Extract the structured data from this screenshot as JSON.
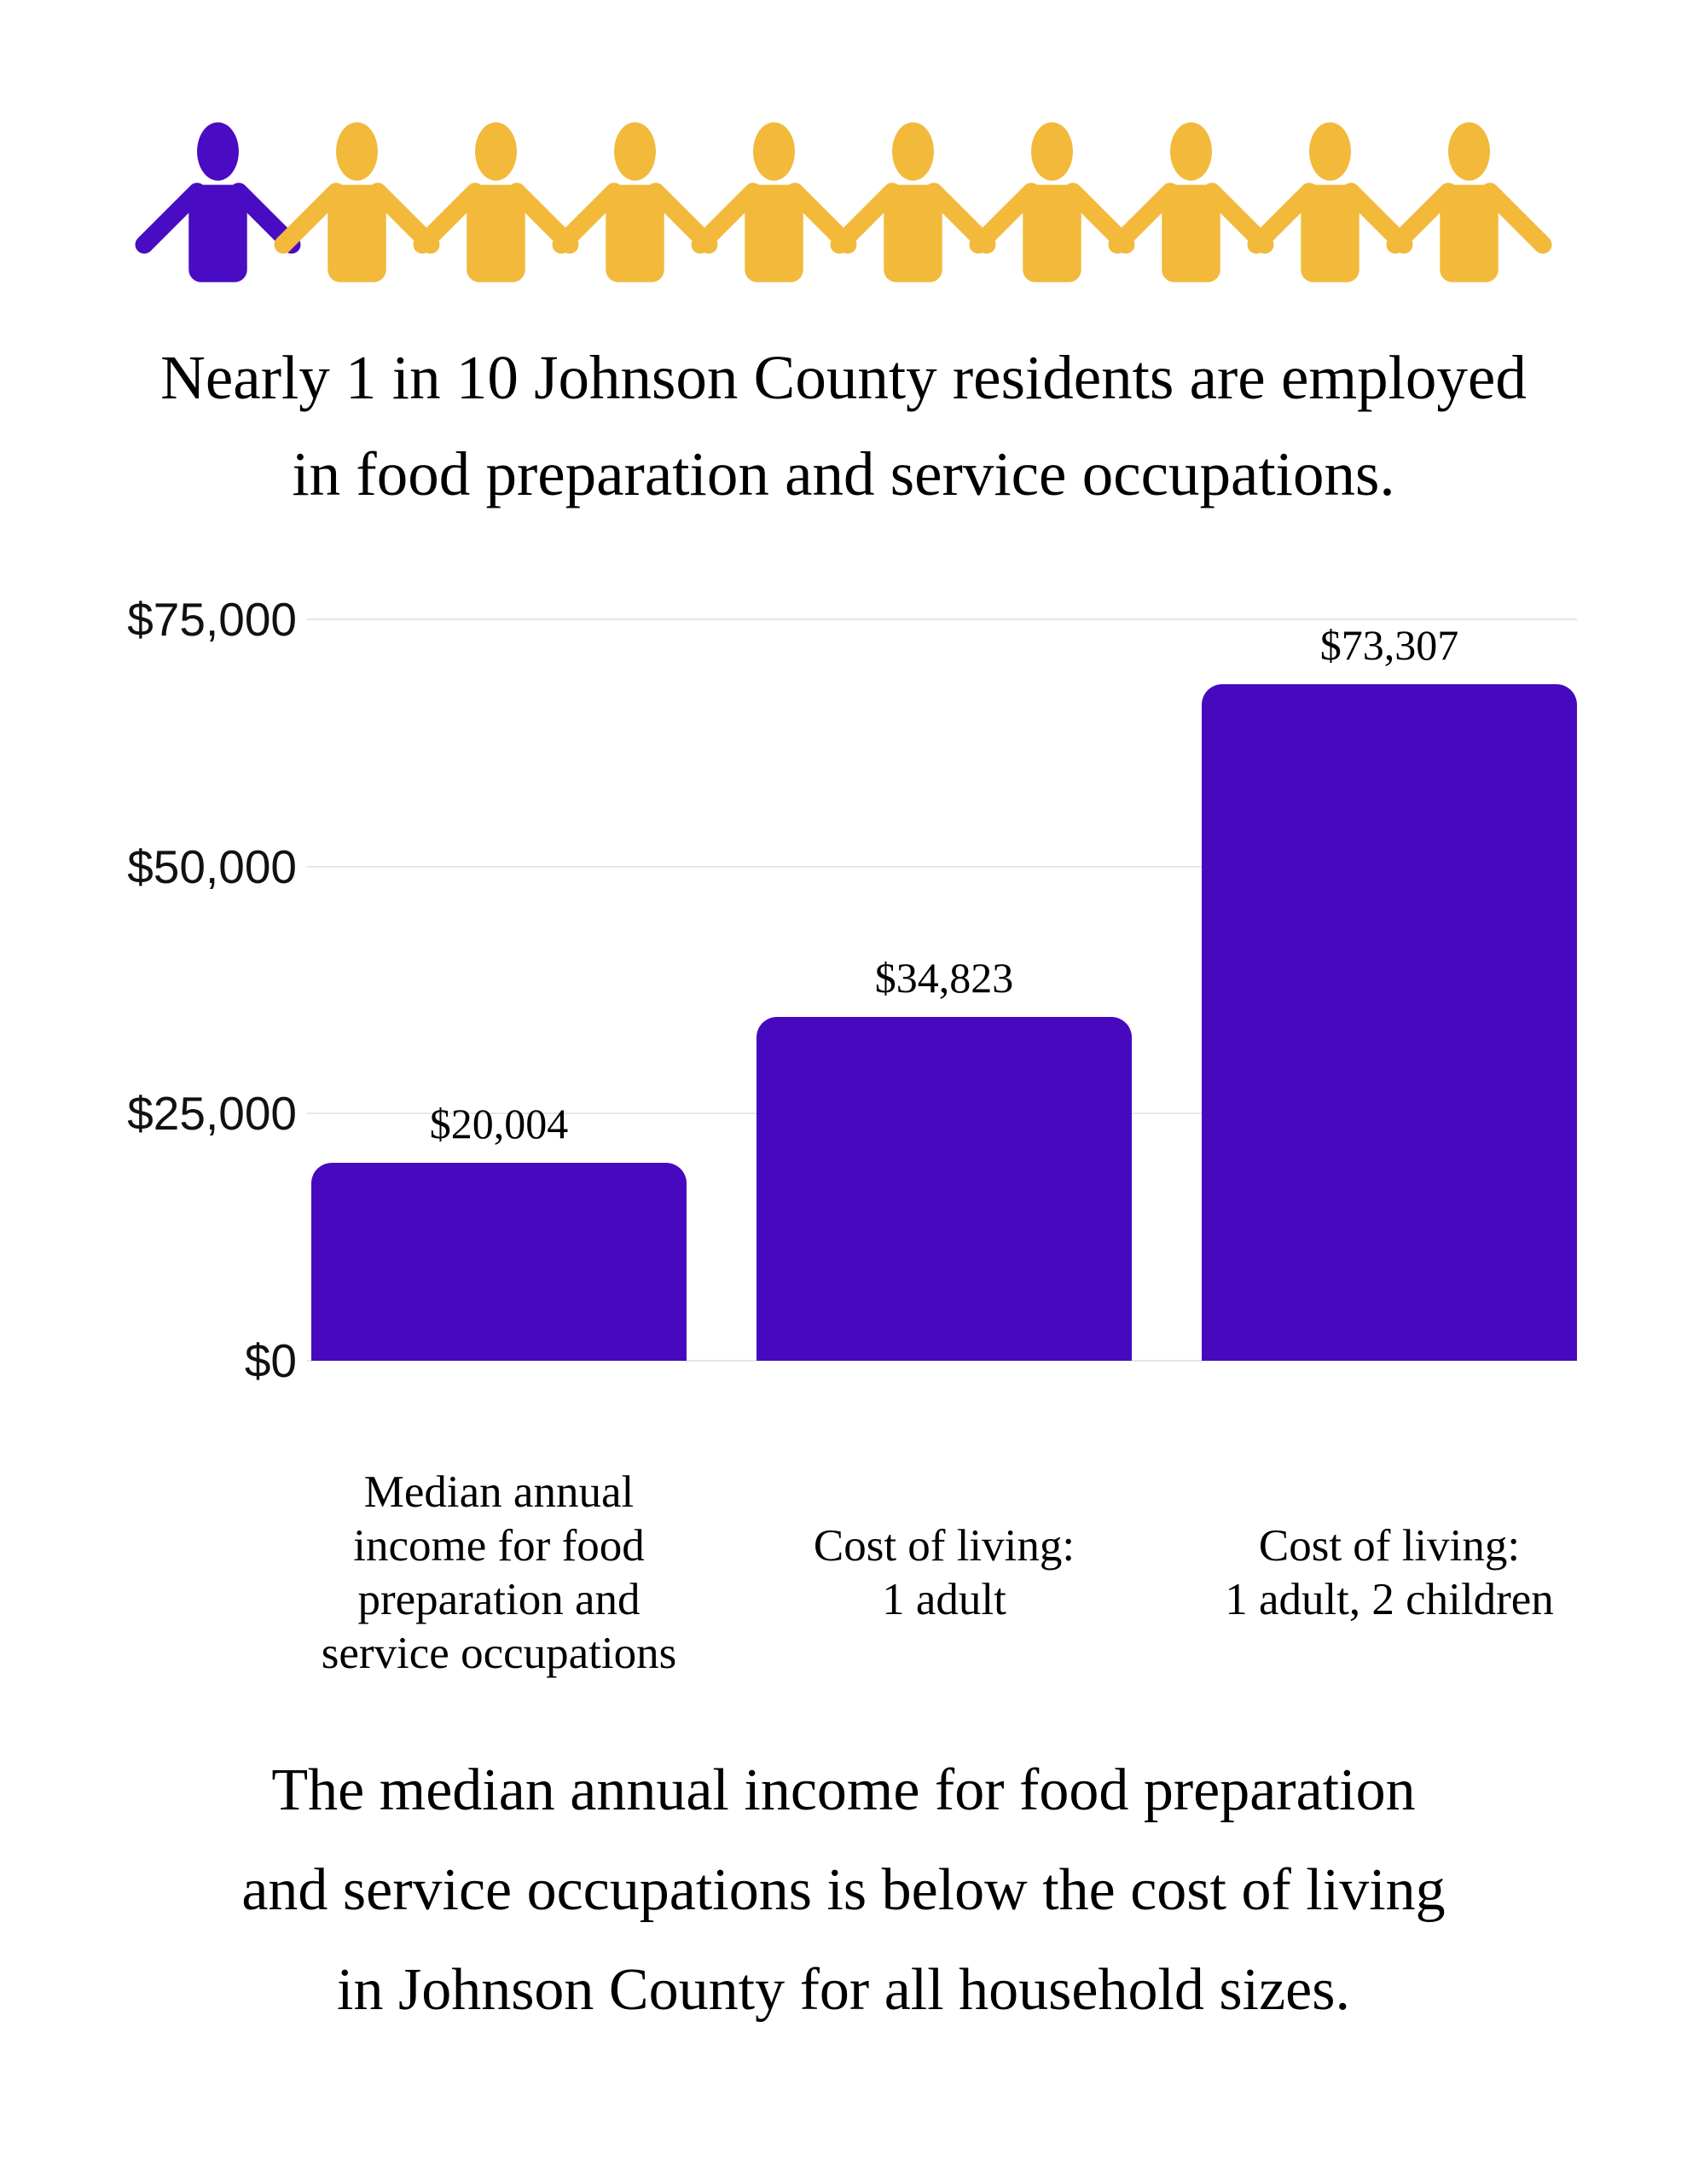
{
  "icons": {
    "total": 10,
    "highlighted": 1,
    "highlight_color": "#4A0CC2",
    "base_color": "#F2B93B"
  },
  "headline": {
    "text": "Nearly 1 in 10 Johnson County residents are employed\nin food preparation and service occupations."
  },
  "chart_data": {
    "type": "bar",
    "categories": [
      "Median annual\nincome for food\npreparation and\nservice occupations",
      "Cost of living:\n1 adult",
      "Cost of living:\n1 adult, 2 children"
    ],
    "values": [
      20004,
      34823,
      73307
    ],
    "value_labels": [
      "$20,004",
      "$34,823",
      "$73,307"
    ],
    "yticks": [
      "$75,000",
      "$50,000",
      "$25,000",
      "$0"
    ],
    "ytick_values": [
      75000,
      50000,
      25000,
      0
    ],
    "ylim": [
      0,
      75000
    ],
    "bar_color": "#4709BE",
    "grid": true,
    "gridline_color": "#E6E6E6",
    "legend": "none",
    "title": "",
    "xlabel": "",
    "ylabel": ""
  },
  "footer": {
    "text": "The median annual income for food preparation\nand service occupations is below the cost of living\nin Johnson County for all household sizes."
  }
}
